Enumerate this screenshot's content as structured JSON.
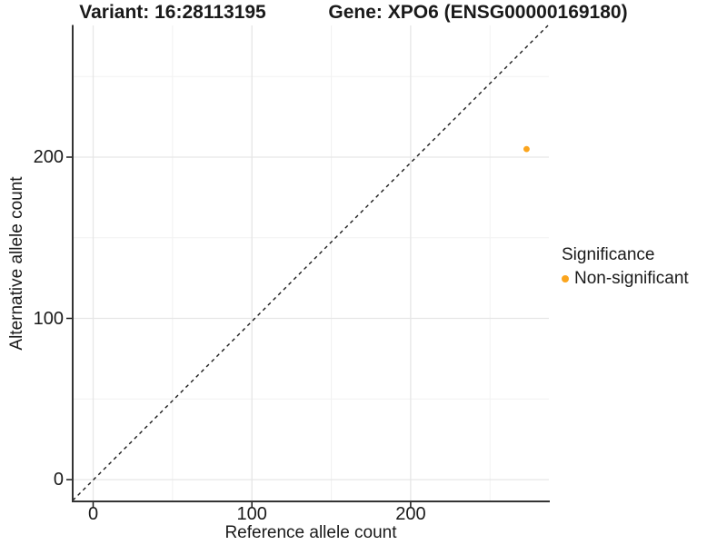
{
  "titles": {
    "variant": "Variant: 16:28113195",
    "gene": "Gene: XPO6 (ENSG00000169180)"
  },
  "legend": {
    "title": "Significance",
    "items": [
      {
        "label": "Non-significant",
        "color": "#FBA51E"
      }
    ]
  },
  "chart_data": {
    "type": "scatter",
    "title": "Variant: 16:28113195 — Gene: XPO6 (ENSG00000169180)",
    "xlabel": "Reference allele count",
    "ylabel": "Alternative allele count",
    "x_ticks": [
      0,
      100,
      200
    ],
    "y_ticks": [
      0,
      100,
      200
    ],
    "xlim": [
      -13,
      287
    ],
    "ylim": [
      -13,
      282
    ],
    "grid": "major and minor gridlines on white panel",
    "legend_position": "right",
    "series": [
      {
        "name": "Non-significant",
        "color": "#FBA51E",
        "points": [
          {
            "x": 273,
            "y": 205
          }
        ]
      }
    ],
    "reference_line": {
      "type": "identity y=x",
      "style": "dashed",
      "color": "#1A1A1A"
    }
  },
  "colors": {
    "background": "#FFFFFF",
    "grid_major": "#E6E6E6",
    "grid_minor": "#F2F2F2",
    "axis_line": "#333333",
    "tick": "#1A1A1A",
    "text": "#1A1A1A",
    "point": "#FBA51E"
  }
}
